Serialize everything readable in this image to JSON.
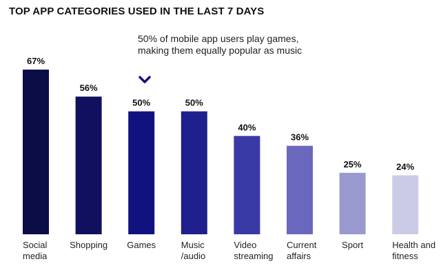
{
  "chart_data": {
    "type": "bar",
    "title": "TOP APP CATEGORIES USED IN THE LAST 7 DAYS",
    "categories": [
      [
        "Social",
        "media"
      ],
      [
        "Shopping"
      ],
      [
        "Games"
      ],
      [
        "Music",
        "/audio"
      ],
      [
        "Video",
        "streaming"
      ],
      [
        "Current",
        "affairs"
      ],
      [
        "Sport"
      ],
      [
        "Health and",
        "fitness"
      ]
    ],
    "values": [
      67,
      56,
      50,
      50,
      40,
      36,
      25,
      24
    ],
    "value_labels": [
      "67%",
      "56%",
      "50%",
      "50%",
      "40%",
      "36%",
      "25%",
      "24%"
    ],
    "colors": [
      "#0c0c46",
      "#10105e",
      "#11117f",
      "#1f1f8e",
      "#3a3aa6",
      "#6a68bd",
      "#9a99cf",
      "#cccbe7"
    ],
    "ylim": [
      0,
      67
    ],
    "xlabel": "",
    "ylabel": "",
    "grid": false,
    "annotation": {
      "text": "50% of mobile app users play games, making them equally popular as music",
      "target_category_index": 2,
      "icon": "chevron-down-icon",
      "color": "#11117f"
    }
  }
}
